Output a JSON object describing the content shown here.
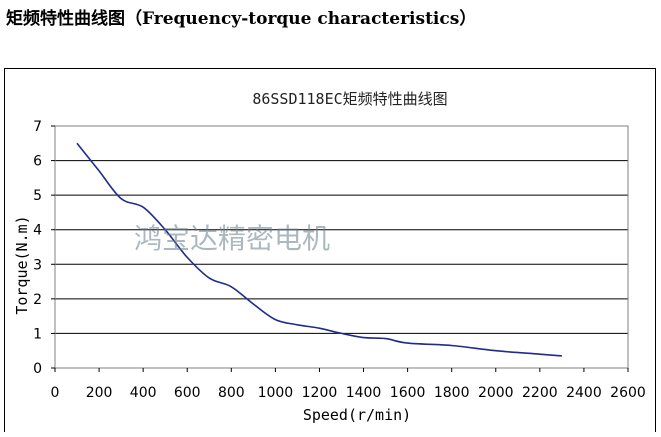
{
  "heading": "矩频特性曲线图（Frequency-torque characteristics）",
  "watermark": "鸿宝达精密电机",
  "colors": {
    "curve": "#1f2c8f",
    "gridline": "#000000",
    "plot_border": "#808080"
  },
  "chart_data": {
    "type": "line",
    "title": "86SSD118EC矩频特性曲线图",
    "xlabel": "Speed(r/min)",
    "ylabel": "Torque(N.m)",
    "xlim": [
      0,
      2600
    ],
    "ylim": [
      0,
      7
    ],
    "xticks": [
      "0",
      "200",
      "400",
      "600",
      "800",
      "1000",
      "1200",
      "1400",
      "1600",
      "1800",
      "2000",
      "2200",
      "2400",
      "2600"
    ],
    "yticks": [
      "0",
      "1",
      "2",
      "3",
      "4",
      "5",
      "6",
      "7"
    ],
    "grid": "horizontal",
    "legend": "none",
    "series": [
      {
        "x": [
          100,
          200,
          300,
          400,
          500,
          600,
          700,
          800,
          900,
          1000,
          1100,
          1200,
          1300,
          1400,
          1500,
          1600,
          1800,
          2000,
          2200,
          2300
        ],
        "y": [
          6.5,
          5.7,
          4.9,
          4.65,
          4.0,
          3.2,
          2.6,
          2.35,
          1.85,
          1.4,
          1.25,
          1.15,
          1.0,
          0.88,
          0.85,
          0.72,
          0.65,
          0.5,
          0.4,
          0.35
        ]
      }
    ]
  }
}
